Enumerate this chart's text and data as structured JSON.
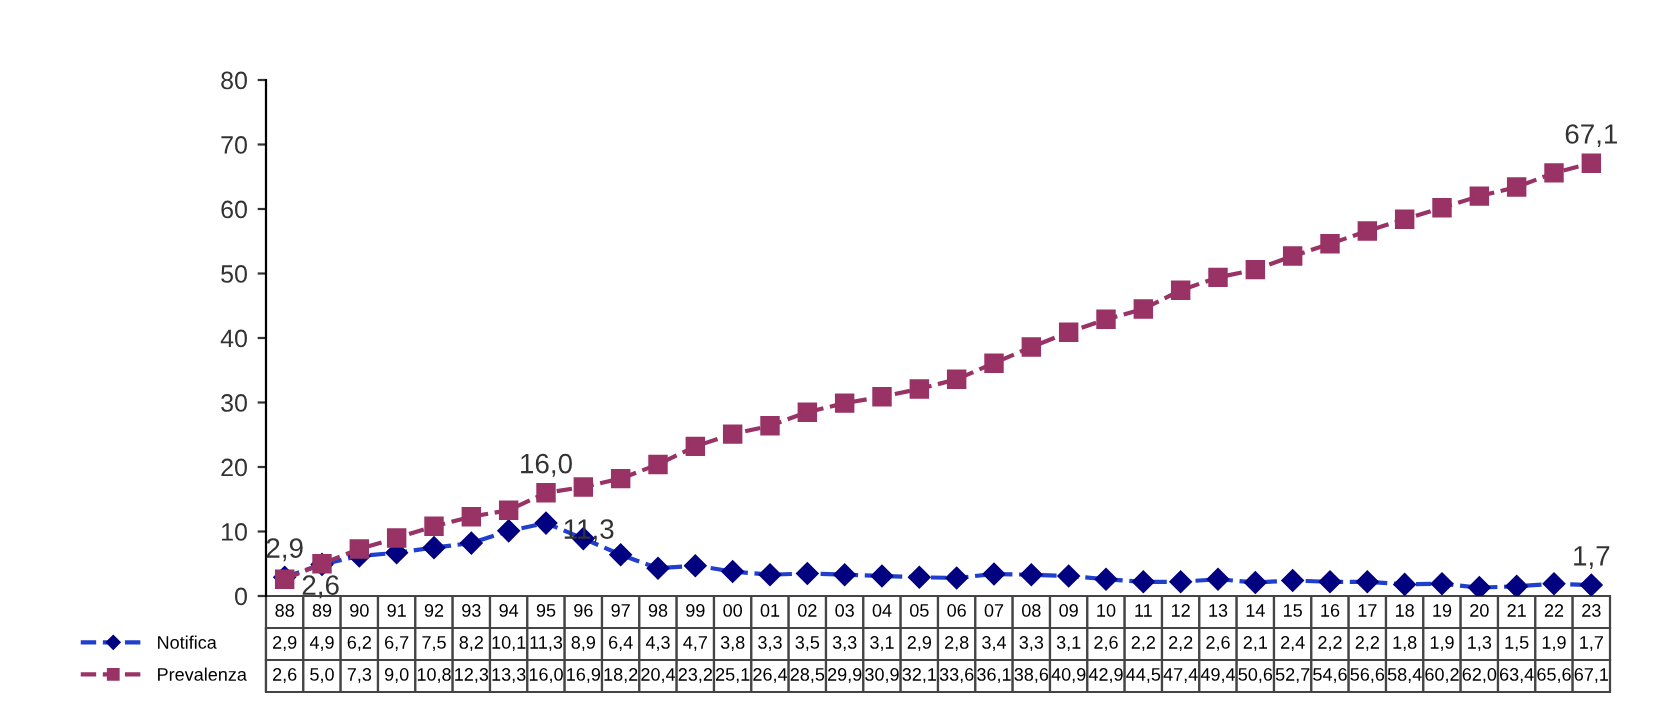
{
  "chart_data": {
    "type": "line",
    "categories": [
      "88",
      "89",
      "90",
      "91",
      "92",
      "93",
      "94",
      "95",
      "96",
      "97",
      "98",
      "99",
      "00",
      "01",
      "02",
      "03",
      "04",
      "05",
      "06",
      "07",
      "08",
      "09",
      "10",
      "11",
      "12",
      "13",
      "14",
      "15",
      "16",
      "17",
      "18",
      "19",
      "20",
      "21",
      "22",
      "23"
    ],
    "series": [
      {
        "name": "Notifica",
        "color": "#1f3fcc",
        "marker": "diamond",
        "value_labels": [
          "2,9",
          "4,9",
          "6,2",
          "6,7",
          "7,5",
          "8,2",
          "10,1",
          "11,3",
          "8,9",
          "6,4",
          "4,3",
          "4,7",
          "3,8",
          "3,3",
          "3,5",
          "3,3",
          "3,1",
          "2,9",
          "2,8",
          "3,4",
          "3,3",
          "3,1",
          "2,6",
          "2,2",
          "2,2",
          "2,6",
          "2,1",
          "2,4",
          "2,2",
          "2,2",
          "1,8",
          "1,9",
          "1,3",
          "1,5",
          "1,9",
          "1,7"
        ],
        "values": [
          2.9,
          4.9,
          6.2,
          6.7,
          7.5,
          8.2,
          10.1,
          11.3,
          8.9,
          6.4,
          4.3,
          4.7,
          3.8,
          3.3,
          3.5,
          3.3,
          3.1,
          2.9,
          2.8,
          3.4,
          3.3,
          3.1,
          2.6,
          2.2,
          2.2,
          2.6,
          2.1,
          2.4,
          2.2,
          2.2,
          1.8,
          1.9,
          1.3,
          1.5,
          1.9,
          1.7
        ]
      },
      {
        "name": "Prevalenza",
        "color": "#993366",
        "marker": "square",
        "value_labels": [
          "2,6",
          "5,0",
          "7,3",
          "9,0",
          "10,8",
          "12,3",
          "13,3",
          "16,0",
          "16,9",
          "18,2",
          "20,4",
          "23,2",
          "25,1",
          "26,4",
          "28,5",
          "29,9",
          "30,9",
          "32,1",
          "33,6",
          "36,1",
          "38,6",
          "40,9",
          "42,9",
          "44,5",
          "47,4",
          "49,4",
          "50,6",
          "52,7",
          "54,6",
          "56,6",
          "58,4",
          "60,2",
          "62,0",
          "63,4",
          "65,6",
          "67,1"
        ],
        "values": [
          2.6,
          5.0,
          7.3,
          9.0,
          10.8,
          12.3,
          13.3,
          16.0,
          16.9,
          18.2,
          20.4,
          23.2,
          25.1,
          26.4,
          28.5,
          29.9,
          30.9,
          32.1,
          33.6,
          36.1,
          38.6,
          40.9,
          42.9,
          44.5,
          47.4,
          49.4,
          50.6,
          52.7,
          54.6,
          56.6,
          58.4,
          60.2,
          62.0,
          63.4,
          65.6,
          67.1
        ]
      }
    ],
    "ylim": [
      0,
      80
    ],
    "yticks": [
      0,
      10,
      20,
      30,
      40,
      50,
      60,
      70,
      80
    ],
    "line_style": "dashed",
    "grid": false,
    "legend": "bottom",
    "annotations": [
      {
        "text": "2,9",
        "x": "88",
        "y": 2.9
      },
      {
        "text": "2,6",
        "x": "88",
        "y": 2.6
      },
      {
        "text": "16,0",
        "x": "95",
        "y": 16.0
      },
      {
        "text": "11,3",
        "x": "95",
        "y": 11.3
      },
      {
        "text": "67,1",
        "x": "23",
        "y": 67.1
      },
      {
        "text": "1,7",
        "x": "23",
        "y": 1.7
      }
    ]
  }
}
